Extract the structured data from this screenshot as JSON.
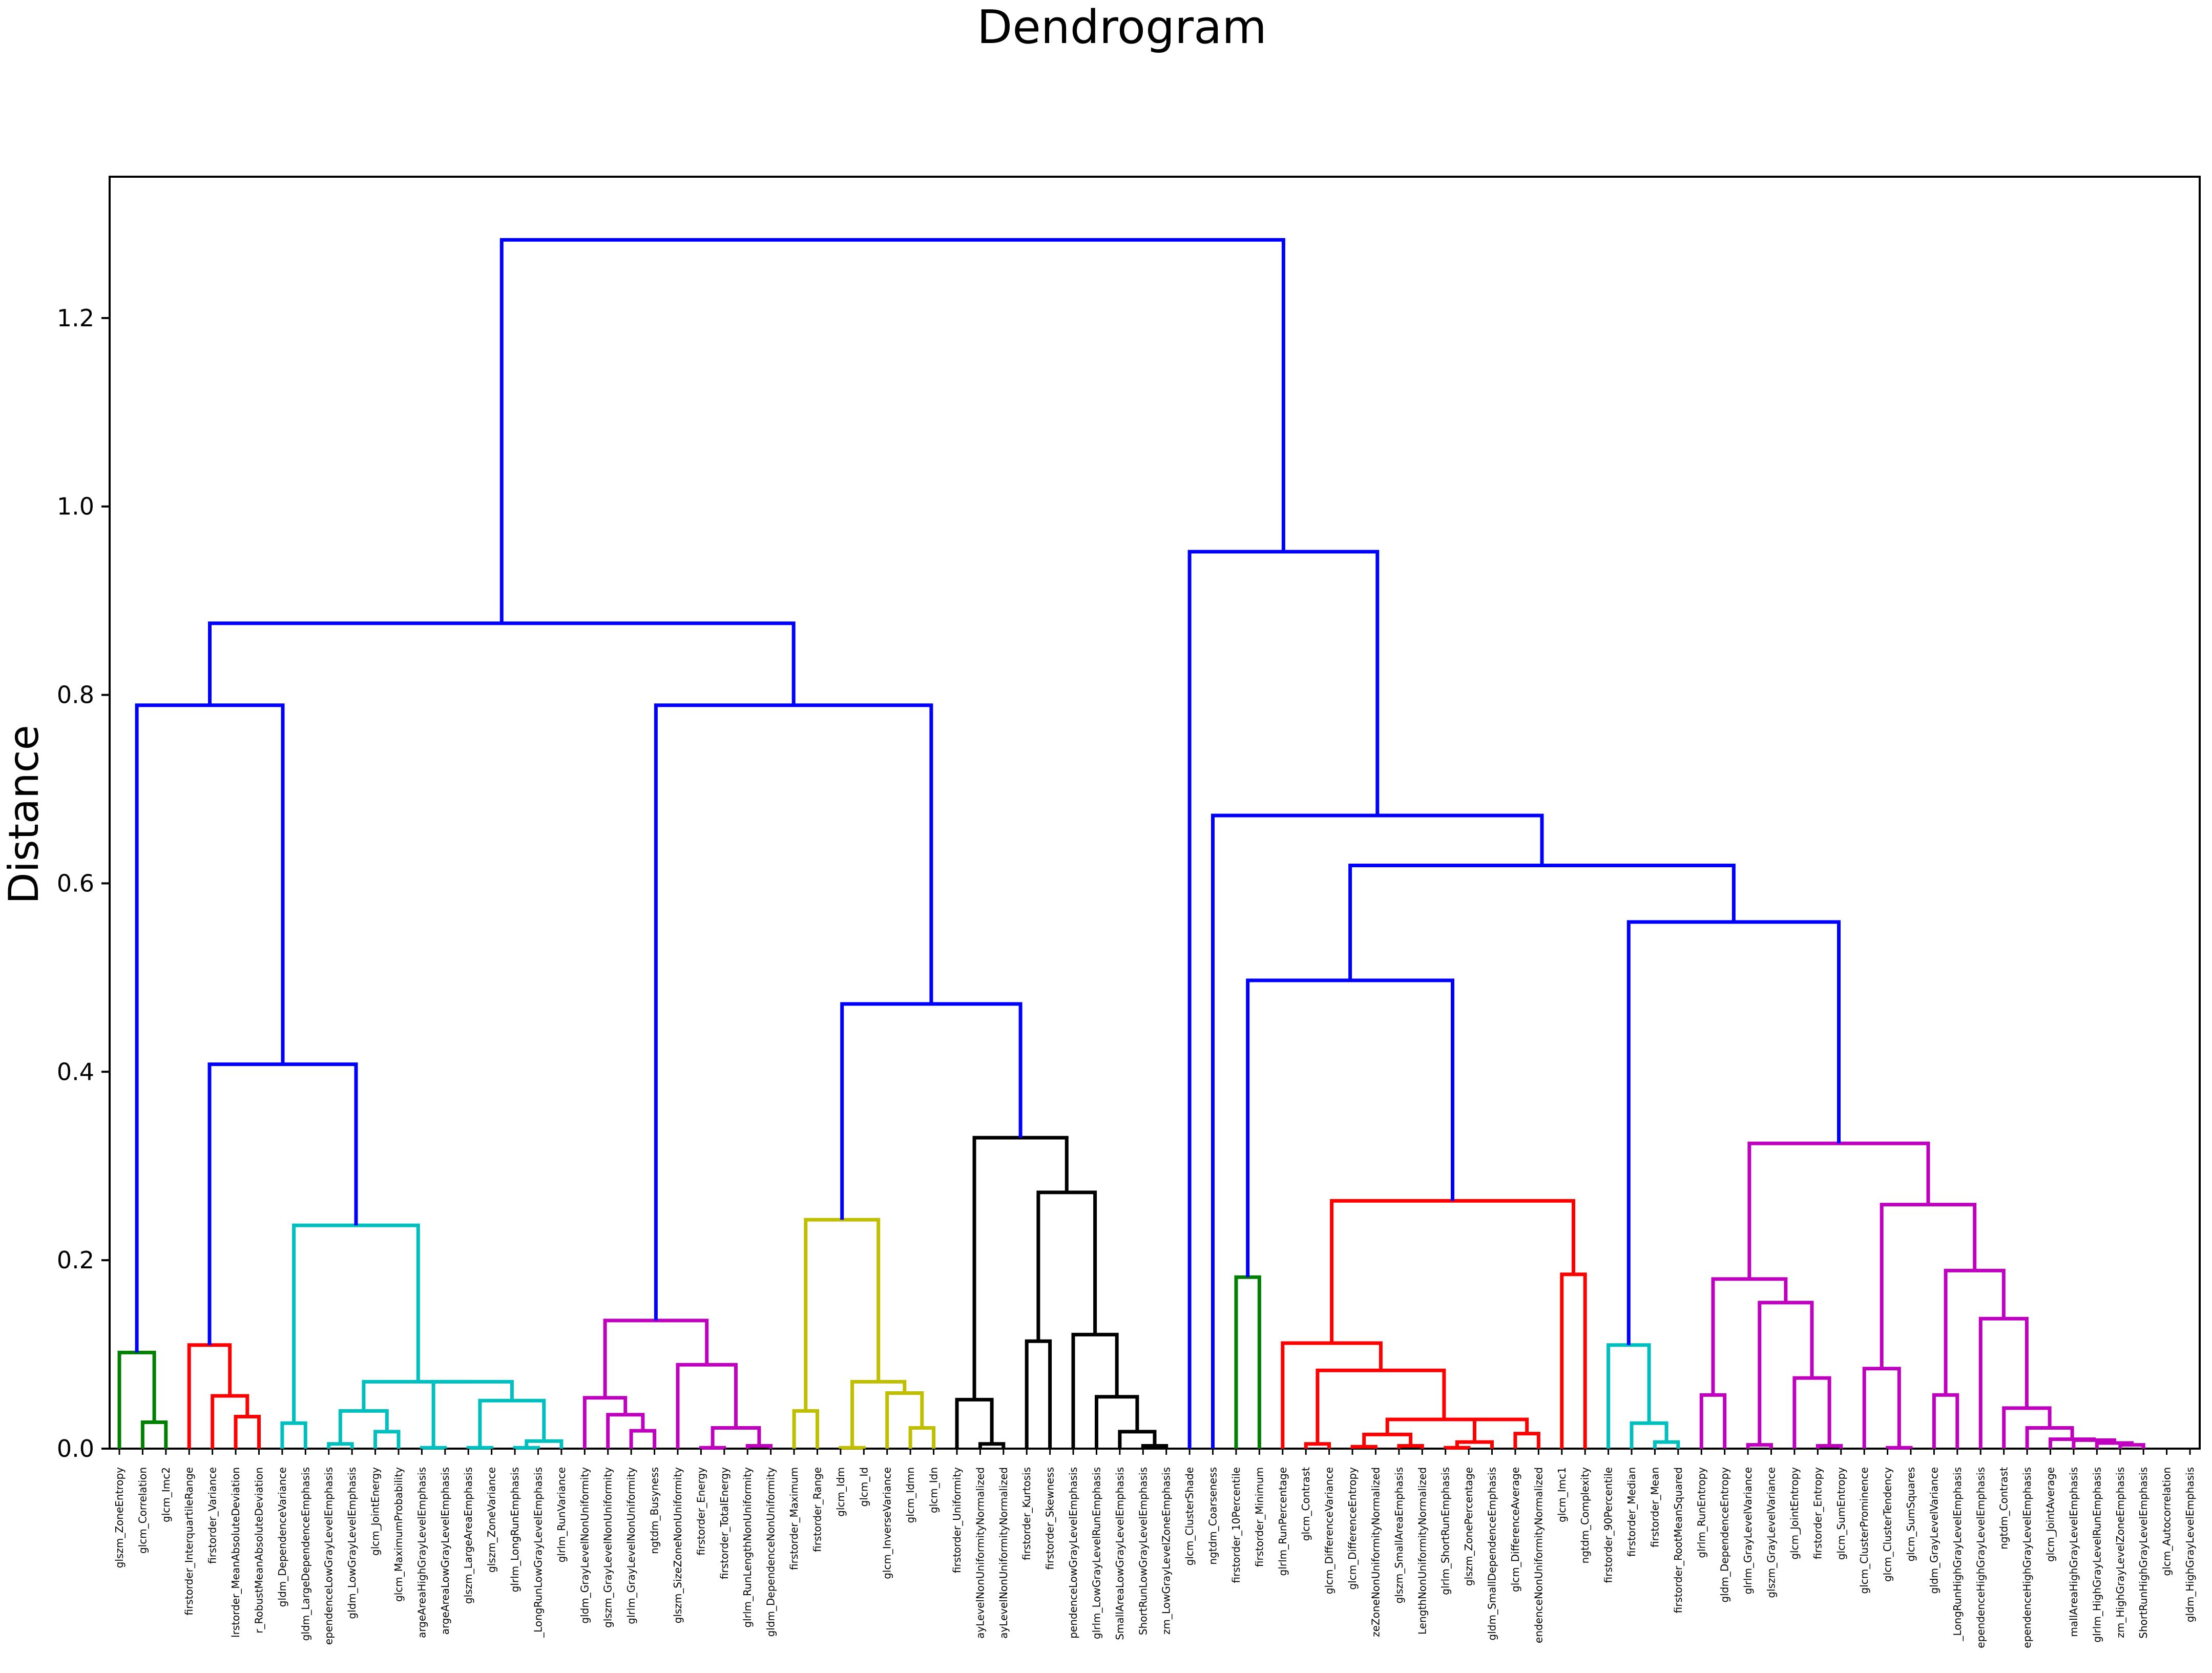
{
  "chart_data": {
    "type": "dendrogram",
    "title": "Dendrogram",
    "xlabel": "",
    "ylabel": "Distance",
    "ylim": [
      0,
      1.35
    ],
    "yticks": [
      "0.0",
      "0.2",
      "0.4",
      "0.6",
      "0.8",
      "1.0",
      "1.2"
    ],
    "colors": {
      "C1": "#008000",
      "C2": "#ff0000",
      "C3": "#00bfbf",
      "C4": "#bf00bf",
      "C5": "#bfbf00",
      "C6": "#000000",
      "C0": "#0000ff"
    },
    "leaves": [
      "glszm_ZoneEntropy",
      "glcm_Correlation",
      "glcm_Imc2",
      "firstorder_InterquartileRange",
      "firstorder_Variance",
      "firstorder_MeanAbsoluteDeviation",
      "firstorder_RobustMeanAbsoluteDeviation",
      "gldm_DependenceVariance",
      "gldm_LargeDependenceEmphasis",
      "gldm_LargeDependenceLowGrayLevelEmphasis",
      "gldm_LowGrayLevelEmphasis",
      "glcm_JointEnergy",
      "glcm_MaximumProbability",
      "glszm_LargeAreaHighGrayLevelEmphasis",
      "glszm_LargeAreaLowGrayLevelEmphasis",
      "glszm_LargeAreaEmphasis",
      "glszm_ZoneVariance",
      "glrlm_LongRunEmphasis",
      "glrlm_LongRunLowGrayLevelEmphasis",
      "glrlm_RunVariance",
      "gldm_GrayLevelNonUniformity",
      "glszm_GrayLevelNonUniformity",
      "glrlm_GrayLevelNonUniformity",
      "ngtdm_Busyness",
      "glszm_SizeZoneNonUniformity",
      "firstorder_Energy",
      "firstorder_TotalEnergy",
      "glrlm_RunLengthNonUniformity",
      "gldm_DependenceNonUniformity",
      "firstorder_Maximum",
      "firstorder_Range",
      "glcm_Idm",
      "glcm_Id",
      "glcm_InverseVariance",
      "glcm_Idmn",
      "glcm_Idn",
      "firstorder_Uniformity",
      "glrlm_GrayLevelNonUniformityNormalized",
      "glszm_GrayLevelNonUniformityNormalized",
      "firstorder_Kurtosis",
      "firstorder_Skewness",
      "gldm_SmallDependenceLowGrayLevelEmphasis",
      "glrlm_LowGrayLevelRunEmphasis",
      "glszm_SmallAreaLowGrayLevelEmphasis",
      "glrlm_ShortRunLowGrayLevelEmphasis",
      "glszm_LowGrayLevelZoneEmphasis",
      "glcm_ClusterShade",
      "ngtdm_Coarseness",
      "firstorder_10Percentile",
      "firstorder_Minimum",
      "glrlm_RunPercentage",
      "glcm_Contrast",
      "glcm_DifferenceVariance",
      "glcm_DifferenceEntropy",
      "glszm_SizeZoneNonUniformityNormalized",
      "glszm_SmallAreaEmphasis",
      "glrlm_RunLengthNonUniformityNormalized",
      "glrlm_ShortRunEmphasis",
      "glszm_ZonePercentage",
      "gldm_SmallDependenceEmphasis",
      "glcm_DifferenceAverage",
      "gldm_DependenceNonUniformityNormalized",
      "glcm_Imc1",
      "ngtdm_Complexity",
      "firstorder_90Percentile",
      "firstorder_Median",
      "firstorder_Mean",
      "firstorder_RootMeanSquared",
      "glrlm_RunEntropy",
      "gldm_DependenceEntropy",
      "glrlm_GrayLevelVariance",
      "glszm_GrayLevelVariance",
      "glcm_JointEntropy",
      "firstorder_Entropy",
      "glcm_SumEntropy",
      "glcm_ClusterProminence",
      "glcm_ClusterTendency",
      "glcm_SumSquares",
      "gldm_GrayLevelVariance",
      "glrlm_LongRunHighGrayLevelEmphasis",
      "gldm_LargeDependenceHighGrayLevelEmphasis",
      "ngtdm_Contrast",
      "gldm_SmallDependenceHighGrayLevelEmphasis",
      "glcm_JointAverage",
      "glszm_SmallAreaHighGrayLevelEmphasis",
      "glrlm_HighGrayLevelRunEmphasis",
      "glszm_HighGrayLevelZoneEmphasis",
      "glrlm_ShortRunHighGrayLevelEmphasis",
      "glcm_Autocorrelation",
      "gldm_HighGrayLevelEmphasis"
    ],
    "visible_leaf_labels": [
      "glszm_ZoneEntropy",
      "glcm_Correlation",
      "glcm_Imc2",
      "firstorder_InterquartileRange",
      "firstorder_Variance",
      "lrstorder_MeanAbsoluteDeviation",
      "r_RobustMeanAbsoluteDeviation",
      "gldm_DependenceVariance",
      "gldm_LargeDependenceEmphasis",
      "ependenceLowGrayLevelEmphasis",
      "gldm_LowGrayLevelEmphasis",
      "glcm_JointEnergy",
      "glcm_MaximumProbability",
      "argeAreaHighGrayLevelEmphasis",
      "argeAreaLowGrayLevelEmphasis",
      "glszm_LargeAreaEmphasis",
      "glszm_ZoneVariance",
      "glrlm_LongRunEmphasis",
      "_LongRunLowGrayLevelEmphasis",
      "glrlm_RunVariance",
      "gldm_GrayLevelNonUniformity",
      "glszm_GrayLevelNonUniformity",
      "glrlm_GrayLevelNonUniformity",
      "ngtdm_Busyness",
      "glszm_SizeZoneNonUniformity",
      "firstorder_Energy",
      "firstorder_TotalEnergy",
      "glrlm_RunLengthNonUniformity",
      "gldm_DependenceNonUniformity",
      "firstorder_Maximum",
      "firstorder_Range",
      "glcm_Idm",
      "glcm_Id",
      "glcm_InverseVariance",
      "glcm_Idmn",
      "glcm_Idn",
      "firstorder_Uniformity",
      "ayLevelNonUniformityNormalized",
      "ayLevelNonUniformityNormalized",
      "firstorder_Kurtosis",
      "firstorder_Skewness",
      "pendenceLowGrayLevelEmphasis",
      "glrlm_LowGrayLevelRunEmphasis",
      "SmallAreaLowGrayLevelEmphasis",
      "ShortRunLowGrayLevelEmphasis",
      "zm_LowGrayLevelZoneEmphasis",
      "glcm_ClusterShade",
      "ngtdm_Coarseness",
      "firstorder_10Percentile",
      "firstorder_Minimum",
      "glrlm_RunPercentage",
      "glcm_Contrast",
      "glcm_DifferenceVariance",
      "glcm_DifferenceEntropy",
      "zeZoneNonUniformityNormalized",
      "glszm_SmallAreaEmphasis",
      "LengthNonUniformityNormalized",
      "glrlm_ShortRunEmphasis",
      "glszm_ZonePercentage",
      "gldm_SmallDependenceEmphasis",
      "glcm_DifferenceAverage",
      "endenceNonUniformityNormalized",
      "glcm_Imc1",
      "ngtdm_Complexity",
      "firstorder_90Percentile",
      "firstorder_Median",
      "firstorder_Mean",
      "firstorder_RootMeanSquared",
      "glrlm_RunEntropy",
      "gldm_DependenceEntropy",
      "glrlm_GrayLevelVariance",
      "glszm_GrayLevelVariance",
      "glcm_JointEntropy",
      "firstorder_Entropy",
      "glcm_SumEntropy",
      "glcm_ClusterProminence",
      "glcm_ClusterTendency",
      "glcm_SumSquares",
      "gldm_GrayLevelVariance",
      "_LongRunHighGrayLevelEmphasis",
      "ependenceHighGrayLevelEmphasis",
      "ngtdm_Contrast",
      "ependenceHighGrayLevelEmphasis",
      "glcm_JointAverage",
      "mallAreaHighGrayLevelEmphasis",
      "glrlm_HighGrayLevelRunEmphasis",
      "zm_HighGrayLevelZoneEmphasis",
      "ShortRunHighGrayLevelEmphasis",
      "glcm_Autocorrelation",
      "gldm_HighGrayLevelEmphasis"
    ],
    "links": [
      {
        "a": 1,
        "b": 2,
        "h": 0.028,
        "color": "C1"
      },
      {
        "a": 0,
        "b": "m0",
        "h": 0.102,
        "color": "C1"
      },
      {
        "a": 6,
        "b": 5,
        "h": 0.034,
        "color": "C2"
      },
      {
        "a": 4,
        "b": "m2",
        "h": 0.056,
        "color": "C2"
      },
      {
        "a": 3,
        "b": "m3",
        "h": 0.11,
        "color": "C2"
      },
      {
        "a": 8,
        "b": 7,
        "h": 0.027,
        "color": "C3"
      },
      {
        "a": 10,
        "b": 9,
        "h": 0.005,
        "color": "C3"
      },
      {
        "a": 12,
        "b": 11,
        "h": 0.018,
        "color": "C3"
      },
      {
        "a": "m6",
        "b": "m7",
        "h": 0.04,
        "color": "C3"
      },
      {
        "a": 14,
        "b": 13,
        "h": 0.001,
        "color": "C3"
      },
      {
        "a": 16,
        "b": 15,
        "h": 0.001,
        "color": "C3"
      },
      {
        "a": 18,
        "b": 17,
        "h": 0.001,
        "color": "C3"
      },
      {
        "a": 19,
        "b": "m11",
        "h": 0.008,
        "color": "C3"
      },
      {
        "a": "m10",
        "b": "m12",
        "h": 0.051,
        "color": "C3"
      },
      {
        "a": "m9",
        "b": "m13",
        "h": 0.071,
        "color": "C3"
      },
      {
        "a": "m8",
        "b": "m14",
        "h": 0.071,
        "color": "C3"
      },
      {
        "a": "m5",
        "b": "m15",
        "h": 0.237,
        "color": "C3"
      },
      {
        "a": "m4",
        "b": "m16",
        "h": 0.408,
        "color": "C0"
      },
      {
        "a": "m1",
        "b": "m17",
        "h": 0.789,
        "color": "C0"
      },
      {
        "a": 22,
        "b": 23,
        "h": 0.019,
        "color": "C4"
      },
      {
        "a": 21,
        "b": "m19",
        "h": 0.036,
        "color": "C4"
      },
      {
        "a": 20,
        "b": "m20",
        "h": 0.054,
        "color": "C4"
      },
      {
        "a": 25,
        "b": 26,
        "h": 0.001,
        "color": "C4"
      },
      {
        "a": 27,
        "b": 28,
        "h": 0.003,
        "color": "C4"
      },
      {
        "a": "m22",
        "b": "m23",
        "h": 0.022,
        "color": "C4"
      },
      {
        "a": 24,
        "b": "m24",
        "h": 0.089,
        "color": "C4"
      },
      {
        "a": "m21",
        "b": "m25",
        "h": 0.136,
        "color": "C4"
      },
      {
        "a": 29,
        "b": 30,
        "h": 0.04,
        "color": "C5"
      },
      {
        "a": 31,
        "b": 32,
        "h": 0.001,
        "color": "C5"
      },
      {
        "a": 34,
        "b": 35,
        "h": 0.022,
        "color": "C5"
      },
      {
        "a": 33,
        "b": "m29",
        "h": 0.059,
        "color": "C5"
      },
      {
        "a": "m28",
        "b": "m30",
        "h": 0.071,
        "color": "C5"
      },
      {
        "a": "m27",
        "b": "m31",
        "h": 0.243,
        "color": "C5"
      },
      {
        "a": 37,
        "b": 38,
        "h": 0.005,
        "color": "C6"
      },
      {
        "a": 36,
        "b": "m33",
        "h": 0.052,
        "color": "C6"
      },
      {
        "a": 39,
        "b": 40,
        "h": 0.114,
        "color": "C6"
      },
      {
        "a": 44,
        "b": 45,
        "h": 0.003,
        "color": "C6"
      },
      {
        "a": 43,
        "b": "m36",
        "h": 0.018,
        "color": "C6"
      },
      {
        "a": 42,
        "b": "m37",
        "h": 0.055,
        "color": "C6"
      },
      {
        "a": 41,
        "b": "m38",
        "h": 0.121,
        "color": "C6"
      },
      {
        "a": "m35",
        "b": "m39",
        "h": 0.272,
        "color": "C6"
      },
      {
        "a": "m34",
        "b": "m40",
        "h": 0.33,
        "color": "C6"
      },
      {
        "a": "m32",
        "b": "m41",
        "h": 0.472,
        "color": "C0"
      },
      {
        "a": "m26",
        "b": "m42",
        "h": 0.789,
        "color": "C0"
      },
      {
        "a": "m18",
        "b": "m43",
        "h": 0.876,
        "color": "C0"
      },
      {
        "a": 48,
        "b": 49,
        "h": 0.182,
        "color": "C1"
      },
      {
        "a": 51,
        "b": 52,
        "h": 0.005,
        "color": "C2"
      },
      {
        "a": 53,
        "b": 54,
        "h": 0.002,
        "color": "C2"
      },
      {
        "a": 55,
        "b": 56,
        "h": 0.003,
        "color": "C2"
      },
      {
        "a": "m47",
        "b": "m48",
        "h": 0.015,
        "color": "C2"
      },
      {
        "a": 57,
        "b": 58,
        "h": 0.001,
        "color": "C2"
      },
      {
        "a": 59,
        "b": "m50",
        "h": 0.007,
        "color": "C2"
      },
      {
        "a": 60,
        "b": 61,
        "h": 0.016,
        "color": "C2"
      },
      {
        "a": "m51",
        "b": "m52",
        "h": 0.031,
        "color": "C2"
      },
      {
        "a": "m49",
        "b": "m53",
        "h": 0.031,
        "color": "C2"
      },
      {
        "a": "m46",
        "b": "m54",
        "h": 0.083,
        "color": "C2"
      },
      {
        "a": 50,
        "b": "m55",
        "h": 0.112,
        "color": "C2"
      },
      {
        "a": 62,
        "b": 63,
        "h": 0.185,
        "color": "C2"
      },
      {
        "a": "m56",
        "b": "m57",
        "h": 0.263,
        "color": "C2"
      },
      {
        "a": "m45",
        "b": "m58",
        "h": 0.497,
        "color": "C0"
      },
      {
        "a": 66,
        "b": 67,
        "h": 0.007,
        "color": "C3"
      },
      {
        "a": 65,
        "b": "m60",
        "h": 0.027,
        "color": "C3"
      },
      {
        "a": 64,
        "b": "m61",
        "h": 0.11,
        "color": "C3"
      },
      {
        "a": 68,
        "b": 69,
        "h": 0.057,
        "color": "C4"
      },
      {
        "a": 70,
        "b": 71,
        "h": 0.004,
        "color": "C4"
      },
      {
        "a": 73,
        "b": 74,
        "h": 0.003,
        "color": "C4"
      },
      {
        "a": 72,
        "b": "m65",
        "h": 0.075,
        "color": "C4"
      },
      {
        "a": "m64",
        "b": "m66",
        "h": 0.155,
        "color": "C4"
      },
      {
        "a": "m63",
        "b": "m67",
        "h": 0.18,
        "color": "C4"
      },
      {
        "a": 76,
        "b": 77,
        "h": 0.001,
        "color": "C4"
      },
      {
        "a": 75,
        "b": "m69",
        "h": 0.085,
        "color": "C4"
      },
      {
        "a": 78,
        "b": 79,
        "h": 0.057,
        "color": "C4"
      },
      {
        "a": 86,
        "b": 87,
        "h": 0.004,
        "color": "C4"
      },
      {
        "a": 85,
        "b": "m72",
        "h": 0.006,
        "color": "C4"
      },
      {
        "a": 84,
        "b": "m73",
        "h": 0.009,
        "color": "C4"
      },
      {
        "a": 83,
        "b": "m74",
        "h": 0.01,
        "color": "C4"
      },
      {
        "a": 82,
        "b": "m75",
        "h": 0.022,
        "color": "C4"
      },
      {
        "a": 81,
        "b": "m76",
        "h": 0.043,
        "color": "C4"
      },
      {
        "a": 80,
        "b": "m77",
        "h": 0.138,
        "color": "C4"
      },
      {
        "a": "m71",
        "b": "m78",
        "h": 0.189,
        "color": "C4"
      },
      {
        "a": "m70",
        "b": "m79",
        "h": 0.259,
        "color": "C4"
      },
      {
        "a": "m68",
        "b": "m80",
        "h": 0.324,
        "color": "C4"
      },
      {
        "a": "m62",
        "b": "m81",
        "h": 0.559,
        "color": "C0"
      },
      {
        "a": "m59",
        "b": "m82",
        "h": 0.619,
        "color": "C0"
      },
      {
        "a": 47,
        "b": "m83",
        "h": 0.672,
        "color": "C0"
      },
      {
        "a": 46,
        "b": "m84",
        "h": 0.952,
        "color": "C0"
      },
      {
        "a": "m44",
        "b": "m85",
        "h": 1.283,
        "color": "C0"
      }
    ]
  }
}
